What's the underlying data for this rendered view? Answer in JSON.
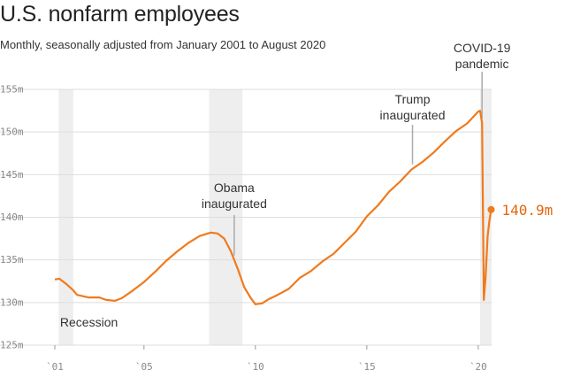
{
  "title": "U.S. nonfarm employees",
  "subtitle": "Monthly, seasonally adjusted from January 2001 to August 2020",
  "colors": {
    "line": "#f07a1c",
    "end_label": "#e5660c",
    "shade": "#eeeeee",
    "grid": "#dedede",
    "axis_text": "#888888",
    "annotation_line": "#aaaaaa"
  },
  "chart_data": {
    "type": "line",
    "title": "U.S. nonfarm employees",
    "subtitle": "Monthly, seasonally adjusted from January 2001 to August 2020",
    "xlabel": "",
    "ylabel": "",
    "xlim": [
      2001.0,
      2020.6
    ],
    "ylim": [
      125,
      155
    ],
    "y_ticks": [
      125,
      130,
      135,
      140,
      145,
      150,
      155
    ],
    "y_tick_labels": [
      "125m",
      "130m",
      "135m",
      "140m",
      "145m",
      "150m",
      "155m"
    ],
    "x_ticks": [
      2001,
      2005,
      2010,
      2015,
      2020
    ],
    "x_tick_labels": [
      "`01",
      "`05",
      "`10",
      "`15",
      "`20"
    ],
    "grid": true,
    "shaded_regions": [
      {
        "label": "Recession",
        "start": 2001.17,
        "end": 2001.83
      },
      {
        "label": "",
        "start": 2007.92,
        "end": 2009.42
      },
      {
        "label": "",
        "start": 2020.08,
        "end": 2020.6
      }
    ],
    "series": [
      {
        "points": [
          [
            2001.0,
            132.7
          ],
          [
            2001.2,
            132.8
          ],
          [
            2001.5,
            132.2
          ],
          [
            2001.8,
            131.5
          ],
          [
            2002.0,
            130.9
          ],
          [
            2002.5,
            130.6
          ],
          [
            2003.0,
            130.6
          ],
          [
            2003.3,
            130.3
          ],
          [
            2003.7,
            130.2
          ],
          [
            2004.0,
            130.5
          ],
          [
            2004.5,
            131.4
          ],
          [
            2005.0,
            132.4
          ],
          [
            2005.5,
            133.6
          ],
          [
            2006.0,
            134.9
          ],
          [
            2006.5,
            136.0
          ],
          [
            2007.0,
            137.0
          ],
          [
            2007.5,
            137.8
          ],
          [
            2008.0,
            138.2
          ],
          [
            2008.3,
            138.1
          ],
          [
            2008.6,
            137.5
          ],
          [
            2008.9,
            136.0
          ],
          [
            2009.2,
            134.0
          ],
          [
            2009.5,
            131.8
          ],
          [
            2009.8,
            130.5
          ],
          [
            2010.0,
            129.8
          ],
          [
            2010.3,
            129.9
          ],
          [
            2010.6,
            130.4
          ],
          [
            2011.0,
            130.9
          ],
          [
            2011.5,
            131.6
          ],
          [
            2012.0,
            132.9
          ],
          [
            2012.5,
            133.7
          ],
          [
            2013.0,
            134.8
          ],
          [
            2013.5,
            135.7
          ],
          [
            2014.0,
            137.0
          ],
          [
            2014.5,
            138.3
          ],
          [
            2015.0,
            140.1
          ],
          [
            2015.5,
            141.4
          ],
          [
            2016.0,
            143.0
          ],
          [
            2016.5,
            144.2
          ],
          [
            2017.0,
            145.6
          ],
          [
            2017.5,
            146.5
          ],
          [
            2018.0,
            147.6
          ],
          [
            2018.5,
            148.9
          ],
          [
            2019.0,
            150.1
          ],
          [
            2019.5,
            151.0
          ],
          [
            2020.0,
            152.4
          ],
          [
            2020.08,
            152.5
          ],
          [
            2020.17,
            151.1
          ],
          [
            2020.25,
            130.3
          ],
          [
            2020.33,
            133.0
          ],
          [
            2020.42,
            137.8
          ],
          [
            2020.5,
            139.6
          ],
          [
            2020.58,
            140.9
          ]
        ]
      }
    ],
    "annotations": [
      {
        "lines": [
          "Recession"
        ],
        "x": 2001.5
      },
      {
        "lines": [
          "Obama",
          "inaugurated"
        ],
        "x": 2009.05
      },
      {
        "lines": [
          "Trump",
          "inaugurated"
        ],
        "x": 2017.05
      },
      {
        "lines": [
          "COVID-19",
          "pandemic"
        ],
        "x": 2020.17
      }
    ],
    "end_label": "140.9m"
  }
}
